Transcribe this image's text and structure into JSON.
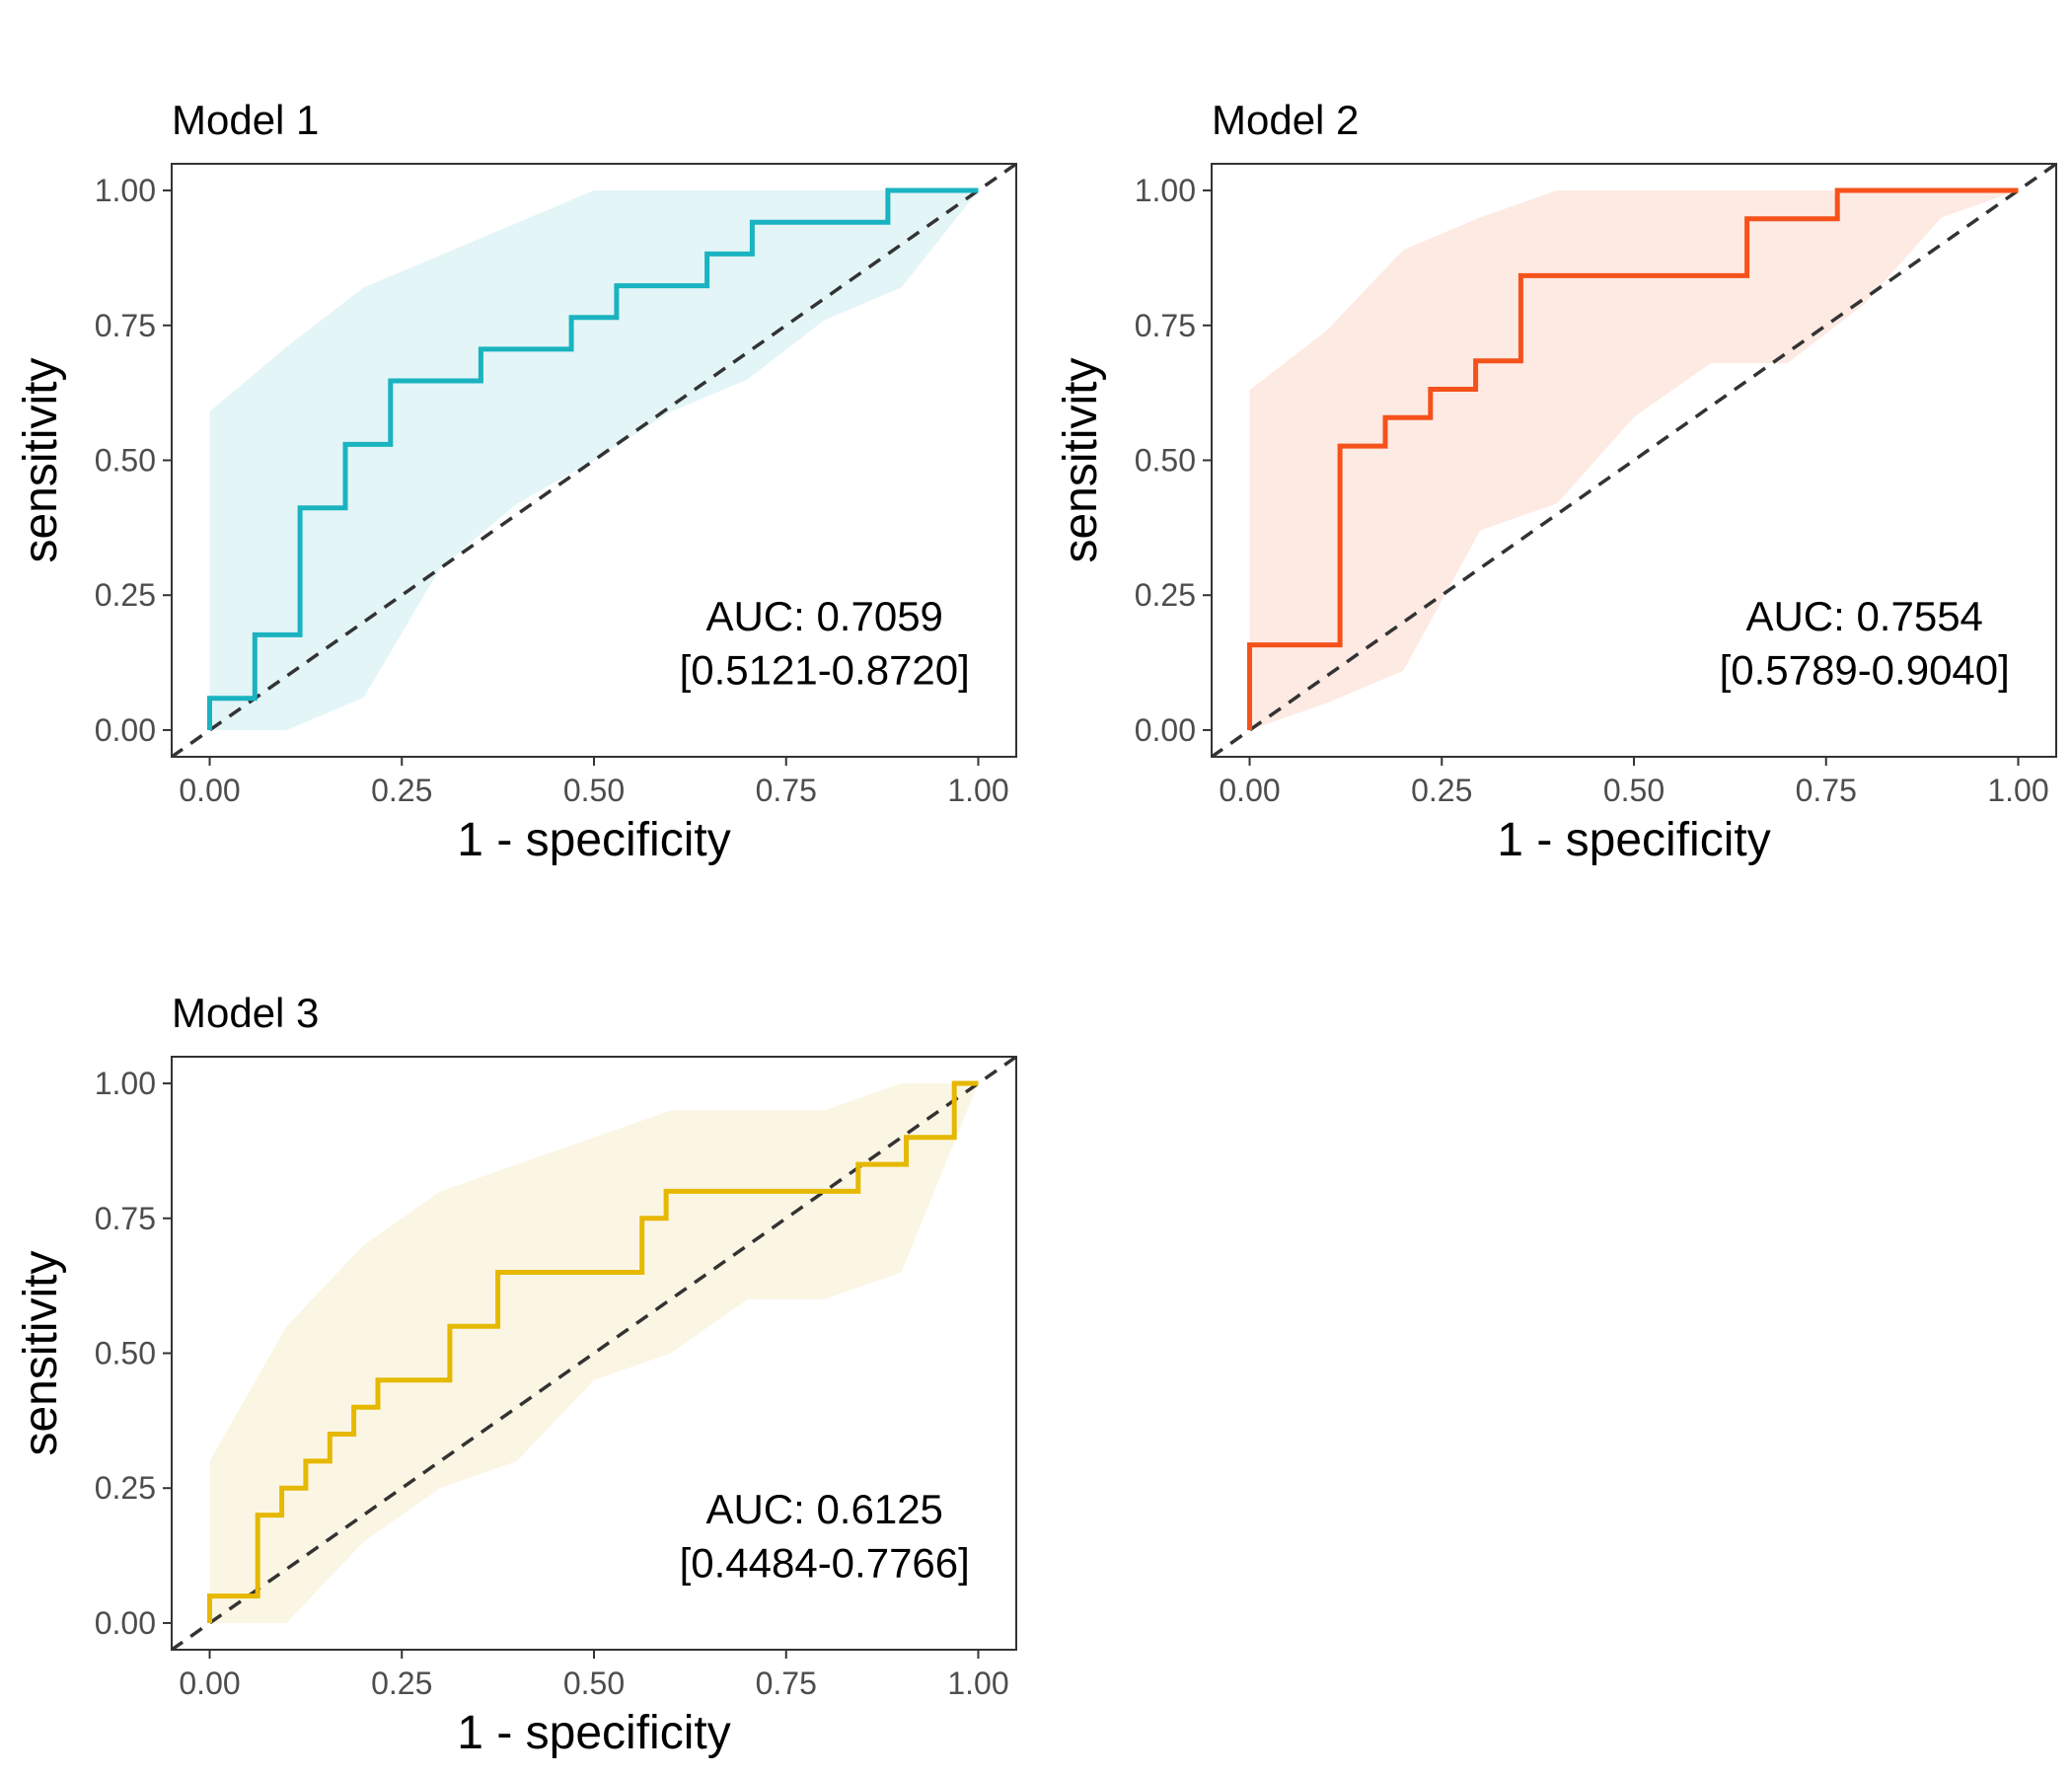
{
  "chart_data": [
    {
      "type": "line",
      "title": "Model 1",
      "xlabel": "1 - specificity",
      "ylabel": "sensitivity",
      "xlim": [
        0,
        1
      ],
      "ylim": [
        0,
        1
      ],
      "xticks": [
        "0.00",
        "0.25",
        "0.50",
        "0.75",
        "1.00"
      ],
      "yticks": [
        "0.00",
        "0.25",
        "0.50",
        "0.75",
        "1.00"
      ],
      "color": "#1ab3c0",
      "band_color": "#e3f5f7",
      "auc_text": "AUC: 0.7059",
      "ci_text": "[0.5121-0.8720]",
      "roc": {
        "x": [
          0,
          0,
          0.0588,
          0.0588,
          0.1176,
          0.1176,
          0.1765,
          0.1765,
          0.2353,
          0.2353,
          0.3529,
          0.3529,
          0.4706,
          0.4706,
          0.5294,
          0.5294,
          0.6471,
          0.6471,
          0.7059,
          0.7059,
          0.8824,
          0.8824,
          1.0
        ],
        "y": [
          0,
          0.0588,
          0.0588,
          0.1765,
          0.1765,
          0.4118,
          0.4118,
          0.5294,
          0.5294,
          0.6471,
          0.6471,
          0.7059,
          0.7059,
          0.7647,
          0.7647,
          0.8235,
          0.8235,
          0.8824,
          0.8824,
          0.9412,
          0.9412,
          1.0,
          1.0
        ]
      },
      "ci_band": {
        "x": [
          0,
          0.1,
          0.2,
          0.3,
          0.4,
          0.5,
          0.6,
          0.7,
          0.8,
          0.9,
          1.0
        ],
        "lower": [
          0,
          0,
          0.06,
          0.3,
          0.42,
          0.5,
          0.59,
          0.65,
          0.76,
          0.82,
          1.0
        ],
        "upper": [
          0.59,
          0.71,
          0.82,
          0.88,
          0.94,
          1.0,
          1.0,
          1.0,
          1.0,
          1.0,
          1.0
        ]
      }
    },
    {
      "type": "line",
      "title": "Model 2",
      "xlabel": "1 - specificity",
      "ylabel": "sensitivity",
      "xlim": [
        0,
        1
      ],
      "ylim": [
        0,
        1
      ],
      "xticks": [
        "0.00",
        "0.25",
        "0.50",
        "0.75",
        "1.00"
      ],
      "yticks": [
        "0.00",
        "0.25",
        "0.50",
        "0.75",
        "1.00"
      ],
      "color": "#f5521b",
      "band_color": "#fdeae3",
      "auc_text": "AUC: 0.7554",
      "ci_text": "[0.5789-0.9040]",
      "roc": {
        "x": [
          0,
          0,
          0.1176,
          0.1176,
          0.1765,
          0.1765,
          0.2353,
          0.2353,
          0.2941,
          0.2941,
          0.3529,
          0.3529,
          0.6471,
          0.6471,
          0.7647,
          0.7647,
          1.0
        ],
        "y": [
          0,
          0.1579,
          0.1579,
          0.5263,
          0.5263,
          0.5789,
          0.5789,
          0.6316,
          0.6316,
          0.6842,
          0.6842,
          0.8421,
          0.8421,
          0.9474,
          0.9474,
          1.0,
          1.0
        ]
      },
      "ci_band": {
        "x": [
          0,
          0.1,
          0.2,
          0.3,
          0.4,
          0.5,
          0.6,
          0.7,
          0.8,
          0.9,
          1.0
        ],
        "lower": [
          0,
          0.05,
          0.11,
          0.37,
          0.42,
          0.58,
          0.68,
          0.68,
          0.79,
          0.95,
          1.0
        ],
        "upper": [
          0.63,
          0.74,
          0.89,
          0.95,
          1.0,
          1.0,
          1.0,
          1.0,
          1.0,
          1.0,
          1.0
        ]
      }
    },
    {
      "type": "line",
      "title": "Model 3",
      "xlabel": "1 - specificity",
      "ylabel": "sensitivity",
      "xlim": [
        0,
        1
      ],
      "ylim": [
        0,
        1
      ],
      "xticks": [
        "0.00",
        "0.25",
        "0.50",
        "0.75",
        "1.00"
      ],
      "yticks": [
        "0.00",
        "0.25",
        "0.50",
        "0.75",
        "1.00"
      ],
      "color": "#e6b800",
      "band_color": "#fbf6e4",
      "auc_text": "AUC: 0.6125",
      "ci_text": "[0.4484-0.7766]",
      "roc": {
        "x": [
          0,
          0,
          0.0625,
          0.0625,
          0.0938,
          0.0938,
          0.125,
          0.125,
          0.1563,
          0.1563,
          0.1875,
          0.1875,
          0.2188,
          0.2188,
          0.3125,
          0.3125,
          0.375,
          0.375,
          0.5625,
          0.5625,
          0.5938,
          0.5938,
          0.8438,
          0.8438,
          0.9063,
          0.9063,
          0.9688,
          0.9688,
          1.0
        ],
        "y": [
          0,
          0.05,
          0.05,
          0.2,
          0.2,
          0.25,
          0.25,
          0.3,
          0.3,
          0.35,
          0.35,
          0.4,
          0.4,
          0.45,
          0.45,
          0.55,
          0.55,
          0.65,
          0.65,
          0.75,
          0.75,
          0.8,
          0.8,
          0.85,
          0.85,
          0.9,
          0.9,
          1.0,
          1.0
        ]
      },
      "ci_band": {
        "x": [
          0,
          0.1,
          0.2,
          0.3,
          0.4,
          0.5,
          0.6,
          0.7,
          0.8,
          0.9,
          1.0
        ],
        "lower": [
          0,
          0,
          0.15,
          0.25,
          0.3,
          0.45,
          0.5,
          0.6,
          0.6,
          0.65,
          1.0
        ],
        "upper": [
          0.3,
          0.55,
          0.7,
          0.8,
          0.85,
          0.9,
          0.95,
          0.95,
          0.95,
          1.0,
          1.0
        ]
      }
    }
  ]
}
